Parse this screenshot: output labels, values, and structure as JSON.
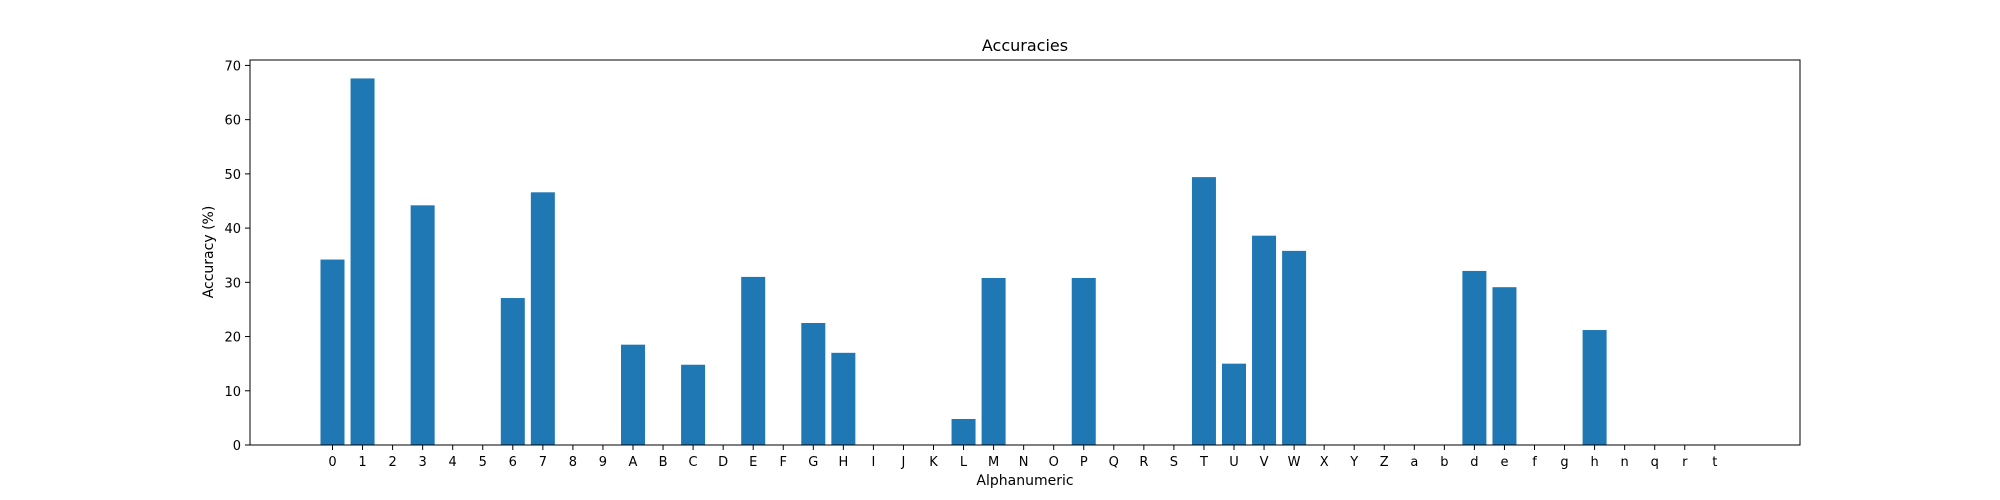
{
  "chart_data": {
    "type": "bar",
    "title": "Accuracies",
    "xlabel": "Alphanumeric",
    "ylabel": "Accuracy (%)",
    "ylim": [
      0,
      71
    ],
    "yticks": [
      0,
      10,
      20,
      30,
      40,
      50,
      60,
      70
    ],
    "grid": false,
    "bar_color": "#1f77b4",
    "categories": [
      "0",
      "1",
      "2",
      "3",
      "4",
      "5",
      "6",
      "7",
      "8",
      "9",
      "A",
      "B",
      "C",
      "D",
      "E",
      "F",
      "G",
      "H",
      "I",
      "J",
      "K",
      "L",
      "M",
      "N",
      "O",
      "P",
      "Q",
      "R",
      "S",
      "T",
      "U",
      "V",
      "W",
      "X",
      "Y",
      "Z",
      "a",
      "b",
      "d",
      "e",
      "f",
      "g",
      "h",
      "n",
      "q",
      "r",
      "t"
    ],
    "values": [
      34.2,
      67.6,
      0,
      44.2,
      0,
      0,
      27.1,
      46.6,
      0,
      0,
      18.5,
      0,
      14.8,
      0,
      31.0,
      0,
      22.5,
      17.0,
      0,
      0,
      0,
      4.8,
      30.8,
      0,
      0,
      30.8,
      0,
      0,
      0,
      49.4,
      15.0,
      38.6,
      35.8,
      0,
      0,
      0,
      0,
      0,
      32.1,
      29.1,
      0,
      0,
      21.2,
      0,
      0,
      0,
      0
    ]
  }
}
